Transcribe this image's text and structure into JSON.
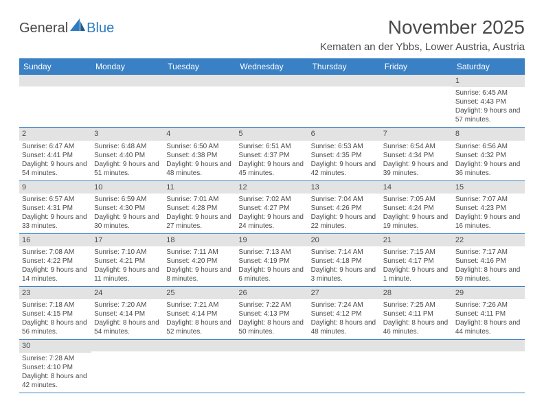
{
  "logo": {
    "text1": "General",
    "text2": "Blue"
  },
  "title": "November 2025",
  "location": "Kematen an der Ybbs, Lower Austria, Austria",
  "colors": {
    "header_bg": "#3a80c4",
    "header_text": "#ffffff",
    "daynum_bg": "#e3e3e3",
    "border": "#3a80c4",
    "text": "#4a4a4a",
    "logo_accent": "#2d7cc1"
  },
  "day_headers": [
    "Sunday",
    "Monday",
    "Tuesday",
    "Wednesday",
    "Thursday",
    "Friday",
    "Saturday"
  ],
  "weeks": [
    [
      {
        "n": "",
        "sr": "",
        "ss": "",
        "dl": ""
      },
      {
        "n": "",
        "sr": "",
        "ss": "",
        "dl": ""
      },
      {
        "n": "",
        "sr": "",
        "ss": "",
        "dl": ""
      },
      {
        "n": "",
        "sr": "",
        "ss": "",
        "dl": ""
      },
      {
        "n": "",
        "sr": "",
        "ss": "",
        "dl": ""
      },
      {
        "n": "",
        "sr": "",
        "ss": "",
        "dl": ""
      },
      {
        "n": "1",
        "sr": "Sunrise: 6:45 AM",
        "ss": "Sunset: 4:43 PM",
        "dl": "Daylight: 9 hours and 57 minutes."
      }
    ],
    [
      {
        "n": "2",
        "sr": "Sunrise: 6:47 AM",
        "ss": "Sunset: 4:41 PM",
        "dl": "Daylight: 9 hours and 54 minutes."
      },
      {
        "n": "3",
        "sr": "Sunrise: 6:48 AM",
        "ss": "Sunset: 4:40 PM",
        "dl": "Daylight: 9 hours and 51 minutes."
      },
      {
        "n": "4",
        "sr": "Sunrise: 6:50 AM",
        "ss": "Sunset: 4:38 PM",
        "dl": "Daylight: 9 hours and 48 minutes."
      },
      {
        "n": "5",
        "sr": "Sunrise: 6:51 AM",
        "ss": "Sunset: 4:37 PM",
        "dl": "Daylight: 9 hours and 45 minutes."
      },
      {
        "n": "6",
        "sr": "Sunrise: 6:53 AM",
        "ss": "Sunset: 4:35 PM",
        "dl": "Daylight: 9 hours and 42 minutes."
      },
      {
        "n": "7",
        "sr": "Sunrise: 6:54 AM",
        "ss": "Sunset: 4:34 PM",
        "dl": "Daylight: 9 hours and 39 minutes."
      },
      {
        "n": "8",
        "sr": "Sunrise: 6:56 AM",
        "ss": "Sunset: 4:32 PM",
        "dl": "Daylight: 9 hours and 36 minutes."
      }
    ],
    [
      {
        "n": "9",
        "sr": "Sunrise: 6:57 AM",
        "ss": "Sunset: 4:31 PM",
        "dl": "Daylight: 9 hours and 33 minutes."
      },
      {
        "n": "10",
        "sr": "Sunrise: 6:59 AM",
        "ss": "Sunset: 4:30 PM",
        "dl": "Daylight: 9 hours and 30 minutes."
      },
      {
        "n": "11",
        "sr": "Sunrise: 7:01 AM",
        "ss": "Sunset: 4:28 PM",
        "dl": "Daylight: 9 hours and 27 minutes."
      },
      {
        "n": "12",
        "sr": "Sunrise: 7:02 AM",
        "ss": "Sunset: 4:27 PM",
        "dl": "Daylight: 9 hours and 24 minutes."
      },
      {
        "n": "13",
        "sr": "Sunrise: 7:04 AM",
        "ss": "Sunset: 4:26 PM",
        "dl": "Daylight: 9 hours and 22 minutes."
      },
      {
        "n": "14",
        "sr": "Sunrise: 7:05 AM",
        "ss": "Sunset: 4:24 PM",
        "dl": "Daylight: 9 hours and 19 minutes."
      },
      {
        "n": "15",
        "sr": "Sunrise: 7:07 AM",
        "ss": "Sunset: 4:23 PM",
        "dl": "Daylight: 9 hours and 16 minutes."
      }
    ],
    [
      {
        "n": "16",
        "sr": "Sunrise: 7:08 AM",
        "ss": "Sunset: 4:22 PM",
        "dl": "Daylight: 9 hours and 14 minutes."
      },
      {
        "n": "17",
        "sr": "Sunrise: 7:10 AM",
        "ss": "Sunset: 4:21 PM",
        "dl": "Daylight: 9 hours and 11 minutes."
      },
      {
        "n": "18",
        "sr": "Sunrise: 7:11 AM",
        "ss": "Sunset: 4:20 PM",
        "dl": "Daylight: 9 hours and 8 minutes."
      },
      {
        "n": "19",
        "sr": "Sunrise: 7:13 AM",
        "ss": "Sunset: 4:19 PM",
        "dl": "Daylight: 9 hours and 6 minutes."
      },
      {
        "n": "20",
        "sr": "Sunrise: 7:14 AM",
        "ss": "Sunset: 4:18 PM",
        "dl": "Daylight: 9 hours and 3 minutes."
      },
      {
        "n": "21",
        "sr": "Sunrise: 7:15 AM",
        "ss": "Sunset: 4:17 PM",
        "dl": "Daylight: 9 hours and 1 minute."
      },
      {
        "n": "22",
        "sr": "Sunrise: 7:17 AM",
        "ss": "Sunset: 4:16 PM",
        "dl": "Daylight: 8 hours and 59 minutes."
      }
    ],
    [
      {
        "n": "23",
        "sr": "Sunrise: 7:18 AM",
        "ss": "Sunset: 4:15 PM",
        "dl": "Daylight: 8 hours and 56 minutes."
      },
      {
        "n": "24",
        "sr": "Sunrise: 7:20 AM",
        "ss": "Sunset: 4:14 PM",
        "dl": "Daylight: 8 hours and 54 minutes."
      },
      {
        "n": "25",
        "sr": "Sunrise: 7:21 AM",
        "ss": "Sunset: 4:14 PM",
        "dl": "Daylight: 8 hours and 52 minutes."
      },
      {
        "n": "26",
        "sr": "Sunrise: 7:22 AM",
        "ss": "Sunset: 4:13 PM",
        "dl": "Daylight: 8 hours and 50 minutes."
      },
      {
        "n": "27",
        "sr": "Sunrise: 7:24 AM",
        "ss": "Sunset: 4:12 PM",
        "dl": "Daylight: 8 hours and 48 minutes."
      },
      {
        "n": "28",
        "sr": "Sunrise: 7:25 AM",
        "ss": "Sunset: 4:11 PM",
        "dl": "Daylight: 8 hours and 46 minutes."
      },
      {
        "n": "29",
        "sr": "Sunrise: 7:26 AM",
        "ss": "Sunset: 4:11 PM",
        "dl": "Daylight: 8 hours and 44 minutes."
      }
    ],
    [
      {
        "n": "30",
        "sr": "Sunrise: 7:28 AM",
        "ss": "Sunset: 4:10 PM",
        "dl": "Daylight: 8 hours and 42 minutes."
      },
      {
        "n": "",
        "sr": "",
        "ss": "",
        "dl": ""
      },
      {
        "n": "",
        "sr": "",
        "ss": "",
        "dl": ""
      },
      {
        "n": "",
        "sr": "",
        "ss": "",
        "dl": ""
      },
      {
        "n": "",
        "sr": "",
        "ss": "",
        "dl": ""
      },
      {
        "n": "",
        "sr": "",
        "ss": "",
        "dl": ""
      },
      {
        "n": "",
        "sr": "",
        "ss": "",
        "dl": ""
      }
    ]
  ]
}
